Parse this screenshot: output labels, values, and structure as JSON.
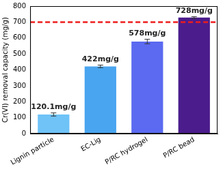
{
  "chart_data": {
    "type": "bar",
    "categories": [
      "Lignin particle",
      "EC-Lig",
      "P/RC hydrogel",
      "P/RC bead"
    ],
    "values": [
      120.1,
      422,
      578,
      728
    ],
    "value_labels": [
      "120.1mg/g",
      "422mg/g",
      "578mg/g",
      "728mg/g"
    ],
    "errors": [
      10,
      8,
      14,
      6
    ],
    "colors": [
      "#6fc3f7",
      "#49a5ef",
      "#5b6af0",
      "#4b1c8c"
    ],
    "y_label": "Cr(VI) removal capacity (mg/g)",
    "ylim": [
      0,
      800
    ],
    "yticks": [
      0,
      100,
      200,
      300,
      400,
      500,
      600,
      700,
      800
    ],
    "grid": false,
    "data_labels": true,
    "reference_line": {
      "value": 700,
      "color": "#ee1c1c",
      "line_style": "dashed"
    }
  }
}
